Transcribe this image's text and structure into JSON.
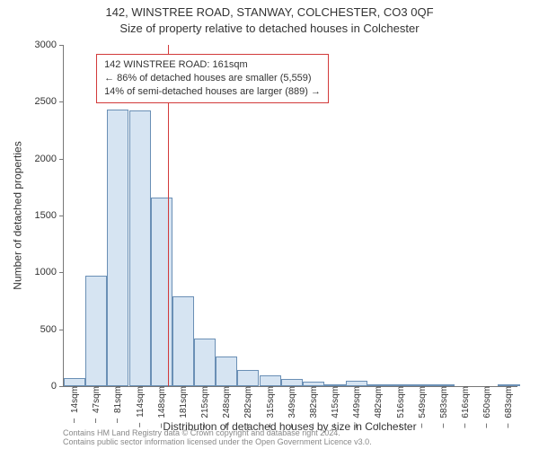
{
  "title_main": "142, WINSTREE ROAD, STANWAY, COLCHESTER, CO3 0QF",
  "title_sub": "Size of property relative to detached houses in Colchester",
  "y_label": "Number of detached properties",
  "x_label": "Distribution of detached houses by size in Colchester",
  "footer_line1": "Contains HM Land Registry data © Crown copyright and database right 2024.",
  "footer_line2": "Contains public sector information licensed under the Open Government Licence v3.0.",
  "chart": {
    "type": "histogram",
    "background_color": "#ffffff",
    "axis_color": "#777777",
    "bar_fill": "#d6e4f2",
    "bar_stroke": "#6a8fb5",
    "bar_stroke_width": 1,
    "ref_line_color": "#d23a3a",
    "ref_line_position_sqm": 161,
    "annotation_border_color": "#d23a3a",
    "tick_fontsize": 11,
    "xtick_fontsize": 10,
    "label_fontsize": 12,
    "title_fontsize": 13,
    "x_min_sqm": 0,
    "x_max_sqm": 700,
    "ylim": [
      0,
      3000
    ],
    "ytick_step": 500,
    "y_ticks": [
      0,
      500,
      1000,
      1500,
      2000,
      2500,
      3000
    ],
    "x_tick_labels": [
      "14sqm",
      "47sqm",
      "81sqm",
      "114sqm",
      "148sqm",
      "181sqm",
      "215sqm",
      "248sqm",
      "282sqm",
      "315sqm",
      "349sqm",
      "382sqm",
      "415sqm",
      "449sqm",
      "482sqm",
      "516sqm",
      "549sqm",
      "583sqm",
      "616sqm",
      "650sqm",
      "683sqm"
    ],
    "bar_width_sqm": 33.5,
    "bars_sqm_start": [
      0,
      33.5,
      67,
      100.5,
      134,
      167.5,
      201,
      234.5,
      268,
      301.5,
      335,
      368.5,
      402,
      435.5,
      469,
      502.5,
      536,
      569.5,
      603,
      636.5,
      670
    ],
    "bar_values": [
      70,
      970,
      2430,
      2420,
      1660,
      790,
      420,
      260,
      140,
      95,
      60,
      40,
      10,
      50,
      10,
      5,
      5,
      5,
      0,
      0,
      5
    ]
  },
  "annotation": {
    "line1": "142 WINSTREE ROAD: 161sqm",
    "line2": "← 86% of detached houses are smaller (5,559)",
    "line3": "14% of semi-detached houses are larger (889) →",
    "left_sqm": 50,
    "top_value": 2920
  }
}
